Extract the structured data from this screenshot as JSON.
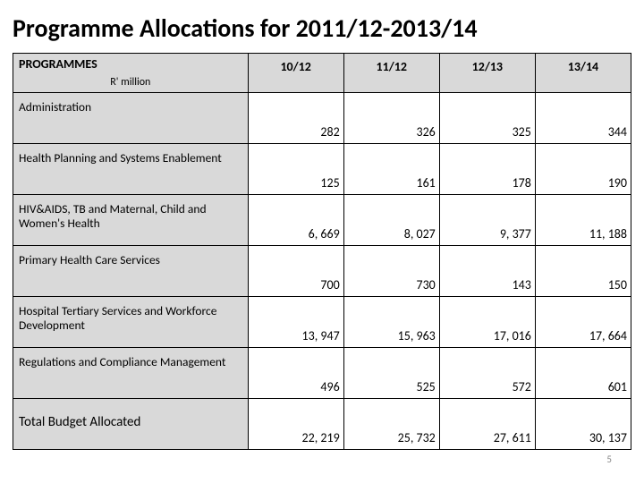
{
  "title": "Programme Allocations for 2011/12-2013/14",
  "columns": {
    "prog_header_line1": "PROGRAMMES",
    "prog_header_line2": "R' million",
    "c1": "10/12",
    "c2": "11/12",
    "c3": "12/13",
    "c4": "13/14"
  },
  "rows": [
    {
      "label": "Administration",
      "v": [
        "282",
        "326",
        "325",
        "344"
      ]
    },
    {
      "label": "Health Planning and Systems Enablement",
      "v": [
        "125",
        "161",
        "178",
        "190"
      ]
    },
    {
      "label": "HIV&AIDS, TB and Maternal, Child  and Women's Health",
      "v": [
        "6, 669",
        "8, 027",
        "9, 377",
        "11, 188"
      ]
    },
    {
      "label": "Primary Health Care Services",
      "v": [
        "700",
        "730",
        "143",
        "150"
      ]
    },
    {
      "label": "Hospital Tertiary Services and Workforce Development",
      "v": [
        "13, 947",
        "15, 963",
        "17, 016",
        "17, 664"
      ]
    },
    {
      "label": "Regulations and Compliance Management",
      "v": [
        "496",
        "525",
        "572",
        "601"
      ]
    },
    {
      "label": "Total  Budget  Allocated",
      "v": [
        "22, 219",
        "25, 732",
        "27, 611",
        "30, 137"
      ],
      "total": true
    }
  ],
  "page_number": "5",
  "colors": {
    "header_bg": "#d9d9d9",
    "label_bg": "#d9d9d9",
    "value_bg": "#ffffff",
    "border": "#000000",
    "title_color": "#000000"
  },
  "fonts": {
    "title_size_pt": 28,
    "header_size_pt": 14,
    "label_size_pt": 13.5,
    "value_size_pt": 14
  }
}
